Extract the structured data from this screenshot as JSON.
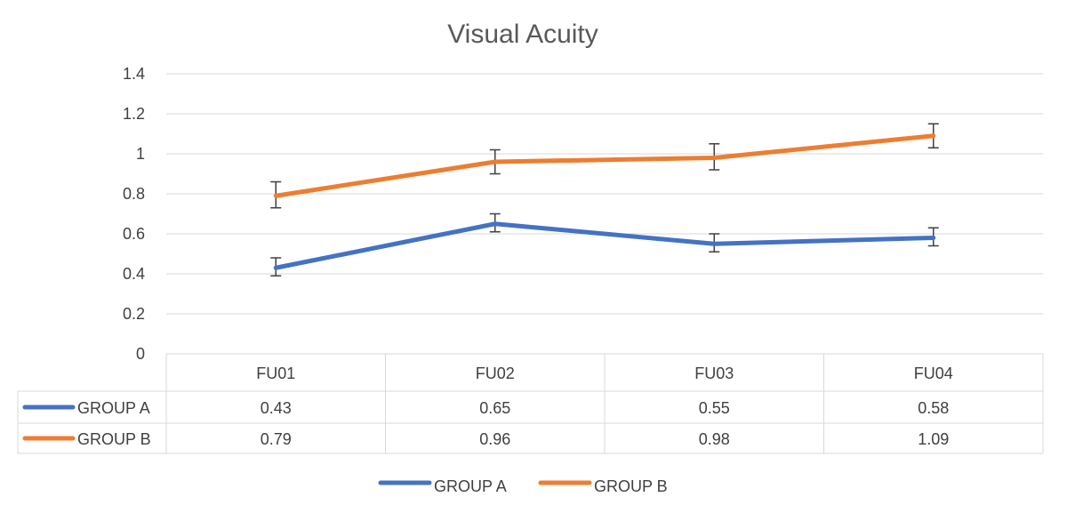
{
  "chart_data": {
    "type": "line",
    "title": "Visual Acuity",
    "categories": [
      "FU01",
      "FU02",
      "FU03",
      "FU04"
    ],
    "ylim": [
      0,
      1.4
    ],
    "yticks": [
      0,
      0.2,
      0.4,
      0.6,
      0.8,
      1,
      1.2,
      1.4
    ],
    "ytick_labels": [
      "0",
      "0.2",
      "0.4",
      "0.6",
      "0.8",
      "1",
      "1.2",
      "1.4"
    ],
    "grid": true,
    "legend_position": "bottom",
    "data_table": true,
    "series": [
      {
        "name": "GROUP A",
        "color": "#4472C4",
        "values": [
          0.43,
          0.65,
          0.55,
          0.58
        ],
        "value_labels": [
          "0.43",
          "0.65",
          "0.55",
          "0.58"
        ],
        "error_low": [
          0.39,
          0.61,
          0.51,
          0.54
        ],
        "error_high": [
          0.48,
          0.7,
          0.6,
          0.63
        ]
      },
      {
        "name": "GROUP B",
        "color": "#ED7D31",
        "values": [
          0.79,
          0.96,
          0.98,
          1.09
        ],
        "value_labels": [
          "0.79",
          "0.96",
          "0.98",
          "1.09"
        ],
        "error_low": [
          0.73,
          0.9,
          0.92,
          1.03
        ],
        "error_high": [
          0.86,
          1.02,
          1.05,
          1.15
        ]
      }
    ]
  }
}
